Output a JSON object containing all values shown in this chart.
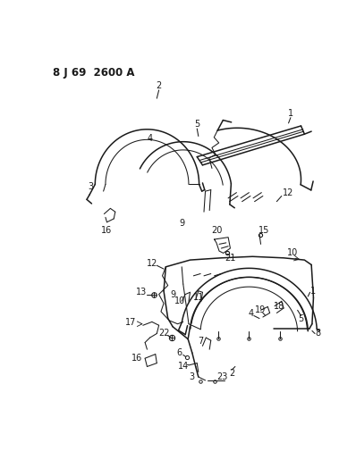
{
  "title": "8 J 69  2600 A",
  "bg_color": "#ffffff",
  "line_color": "#1a1a1a",
  "title_fontsize": 8.5,
  "label_fontsize": 7,
  "figsize": [
    3.98,
    5.33
  ],
  "dpi": 100
}
